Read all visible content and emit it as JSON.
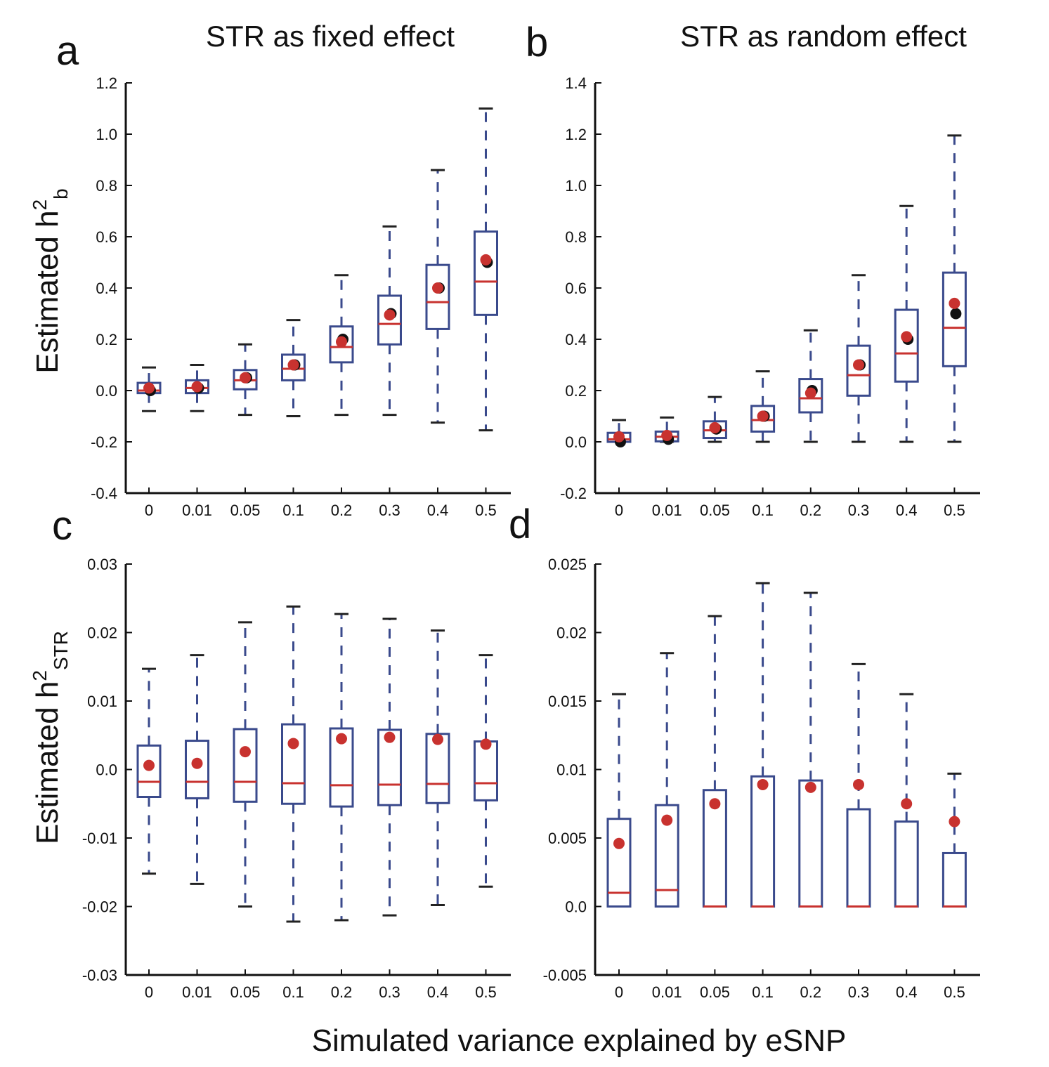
{
  "colors": {
    "box": "#3a4a8c",
    "median": "#c8322f",
    "whisker_cap": "#222222",
    "mean_point": "#c8322f",
    "true_point": "#111111",
    "axis": "#111111"
  },
  "figure": {
    "column_titles": [
      "STR as fixed effect",
      "STR as random effect"
    ],
    "shared_xlabel": "Simulated variance explained by eSNP",
    "row_ylabels": [
      {
        "main": "Estimated h",
        "sup": "2",
        "sub": "b"
      },
      {
        "main": "Estimated h",
        "sup": "2",
        "sub": "STR"
      }
    ]
  },
  "chart_data": [
    {
      "panel": "a",
      "type": "box",
      "categories": [
        "0",
        "0.01",
        "0.05",
        "0.1",
        "0.2",
        "0.3",
        "0.4",
        "0.5"
      ],
      "ylim": [
        -0.4,
        1.2
      ],
      "yticks": [
        -0.4,
        -0.2,
        0.0,
        0.2,
        0.4,
        0.6,
        0.8,
        1.0,
        1.2
      ],
      "ytick_labels": [
        "-0.4",
        "-0.2",
        "0.0",
        "0.2",
        "0.4",
        "0.6",
        "0.8",
        "1.0",
        "1.2"
      ],
      "boxes": [
        {
          "low": -0.08,
          "q1": -0.01,
          "median": 0.0,
          "q3": 0.03,
          "high": 0.09,
          "mean": 0.01,
          "true": 0.0
        },
        {
          "low": -0.08,
          "q1": -0.01,
          "median": 0.01,
          "q3": 0.04,
          "high": 0.1,
          "mean": 0.015,
          "true": 0.01
        },
        {
          "low": -0.095,
          "q1": 0.005,
          "median": 0.04,
          "q3": 0.08,
          "high": 0.18,
          "mean": 0.05,
          "true": 0.05
        },
        {
          "low": -0.1,
          "q1": 0.04,
          "median": 0.085,
          "q3": 0.14,
          "high": 0.275,
          "mean": 0.1,
          "true": 0.1
        },
        {
          "low": -0.095,
          "q1": 0.11,
          "median": 0.17,
          "q3": 0.25,
          "high": 0.45,
          "mean": 0.19,
          "true": 0.2
        },
        {
          "low": -0.095,
          "q1": 0.18,
          "median": 0.26,
          "q3": 0.37,
          "high": 0.64,
          "mean": 0.295,
          "true": 0.3
        },
        {
          "low": -0.125,
          "q1": 0.24,
          "median": 0.345,
          "q3": 0.49,
          "high": 0.86,
          "mean": 0.4,
          "true": 0.4
        },
        {
          "low": -0.155,
          "q1": 0.295,
          "median": 0.425,
          "q3": 0.62,
          "high": 1.1,
          "mean": 0.51,
          "true": 0.5
        }
      ]
    },
    {
      "panel": "b",
      "type": "box",
      "categories": [
        "0",
        "0.01",
        "0.05",
        "0.1",
        "0.2",
        "0.3",
        "0.4",
        "0.5"
      ],
      "ylim": [
        -0.2,
        1.4
      ],
      "yticks": [
        -0.2,
        0.0,
        0.2,
        0.4,
        0.6,
        0.8,
        1.0,
        1.2,
        1.4
      ],
      "ytick_labels": [
        "-0.2",
        "0.0",
        "0.2",
        "0.4",
        "0.6",
        "0.8",
        "1.0",
        "1.2",
        "1.4"
      ],
      "boxes": [
        {
          "low": 0.0,
          "q1": 0.0,
          "median": 0.01,
          "q3": 0.035,
          "high": 0.085,
          "mean": 0.02,
          "true": 0.0
        },
        {
          "low": 0.0,
          "q1": 0.002,
          "median": 0.02,
          "q3": 0.04,
          "high": 0.095,
          "mean": 0.025,
          "true": 0.01
        },
        {
          "low": 0.0,
          "q1": 0.015,
          "median": 0.045,
          "q3": 0.08,
          "high": 0.175,
          "mean": 0.055,
          "true": 0.05
        },
        {
          "low": 0.0,
          "q1": 0.04,
          "median": 0.085,
          "q3": 0.14,
          "high": 0.275,
          "mean": 0.1,
          "true": 0.1
        },
        {
          "low": 0.0,
          "q1": 0.115,
          "median": 0.17,
          "q3": 0.245,
          "high": 0.435,
          "mean": 0.19,
          "true": 0.2
        },
        {
          "low": 0.0,
          "q1": 0.18,
          "median": 0.26,
          "q3": 0.375,
          "high": 0.65,
          "mean": 0.3,
          "true": 0.3
        },
        {
          "low": 0.0,
          "q1": 0.235,
          "median": 0.345,
          "q3": 0.515,
          "high": 0.92,
          "mean": 0.41,
          "true": 0.4
        },
        {
          "low": 0.0,
          "q1": 0.295,
          "median": 0.445,
          "q3": 0.66,
          "high": 1.195,
          "mean": 0.54,
          "true": 0.5
        }
      ]
    },
    {
      "panel": "c",
      "type": "box",
      "categories": [
        "0",
        "0.01",
        "0.05",
        "0.1",
        "0.2",
        "0.3",
        "0.4",
        "0.5"
      ],
      "ylim": [
        -0.03,
        0.03
      ],
      "yticks": [
        -0.03,
        -0.02,
        -0.01,
        0.0,
        0.01,
        0.02,
        0.03
      ],
      "ytick_labels": [
        "-0.03",
        "-0.02",
        "-0.01",
        "0.0",
        "0.01",
        "0.02",
        "0.03"
      ],
      "boxes": [
        {
          "low": -0.0152,
          "q1": -0.004,
          "median": -0.0018,
          "q3": 0.0035,
          "high": 0.0147,
          "mean": 0.0006
        },
        {
          "low": -0.0167,
          "q1": -0.0042,
          "median": -0.0018,
          "q3": 0.0042,
          "high": 0.0167,
          "mean": 0.0009
        },
        {
          "low": -0.02,
          "q1": -0.0047,
          "median": -0.0018,
          "q3": 0.0059,
          "high": 0.0215,
          "mean": 0.0026
        },
        {
          "low": -0.0222,
          "q1": -0.005,
          "median": -0.002,
          "q3": 0.0066,
          "high": 0.0238,
          "mean": 0.0038
        },
        {
          "low": -0.022,
          "q1": -0.0054,
          "median": -0.0023,
          "q3": 0.006,
          "high": 0.0227,
          "mean": 0.0045
        },
        {
          "low": -0.0213,
          "q1": -0.0052,
          "median": -0.0022,
          "q3": 0.0058,
          "high": 0.022,
          "mean": 0.0047
        },
        {
          "low": -0.0198,
          "q1": -0.0049,
          "median": -0.0021,
          "q3": 0.0052,
          "high": 0.0203,
          "mean": 0.0044
        },
        {
          "low": -0.0171,
          "q1": -0.0045,
          "median": -0.002,
          "q3": 0.0041,
          "high": 0.0167,
          "mean": 0.0037
        }
      ]
    },
    {
      "panel": "d",
      "type": "box",
      "categories": [
        "0",
        "0.01",
        "0.05",
        "0.1",
        "0.2",
        "0.3",
        "0.4",
        "0.5"
      ],
      "ylim": [
        -0.005,
        0.025
      ],
      "yticks": [
        -0.005,
        0.0,
        0.005,
        0.01,
        0.015,
        0.02,
        0.025
      ],
      "ytick_labels": [
        "-0.005",
        "0.0",
        "0.005",
        "0.01",
        "0.015",
        "0.02",
        "0.025"
      ],
      "boxes": [
        {
          "low": 0.0,
          "q1": 0.0,
          "median": 0.001,
          "q3": 0.0064,
          "high": 0.0155,
          "mean": 0.0046
        },
        {
          "low": 0.0,
          "q1": 0.0,
          "median": 0.0012,
          "q3": 0.0074,
          "high": 0.0185,
          "mean": 0.0063
        },
        {
          "low": 0.0,
          "q1": 0.0,
          "median": 0.0,
          "q3": 0.0085,
          "high": 0.0212,
          "mean": 0.0075
        },
        {
          "low": 0.0,
          "q1": 0.0,
          "median": 0.0,
          "q3": 0.0095,
          "high": 0.0236,
          "mean": 0.0089
        },
        {
          "low": 0.0,
          "q1": 0.0,
          "median": 0.0,
          "q3": 0.0092,
          "high": 0.0229,
          "mean": 0.0087
        },
        {
          "low": 0.0,
          "q1": 0.0,
          "median": 0.0,
          "q3": 0.0071,
          "high": 0.0177,
          "mean": 0.0089
        },
        {
          "low": 0.0,
          "q1": 0.0,
          "median": 0.0,
          "q3": 0.0062,
          "high": 0.0155,
          "mean": 0.0075
        },
        {
          "low": 0.0,
          "q1": 0.0,
          "median": 0.0,
          "q3": 0.0039,
          "high": 0.0097,
          "mean": 0.0062
        }
      ]
    }
  ]
}
